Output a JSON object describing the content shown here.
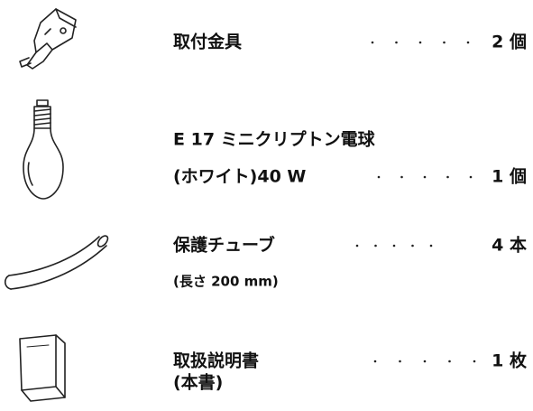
{
  "items": [
    {
      "lines": [
        "取付金具"
      ],
      "quantity": "2 個"
    },
    {
      "lines": [
        "E 17 ミニクリプトン電球",
        "(ホワイト)40 W"
      ],
      "quantity": "1 個"
    },
    {
      "lines": [
        "保護チューブ",
        "(長さ 200 mm)"
      ],
      "quantity": "4 本"
    },
    {
      "lines": [
        "取扱説明書",
        "(本書)"
      ],
      "quantity": "1 枚"
    }
  ]
}
